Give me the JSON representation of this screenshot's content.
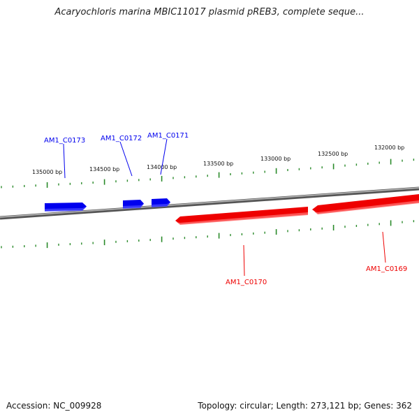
{
  "title": "Acaryochloris marina MBIC11017 plasmid pREB3, complete seque...",
  "footer": {
    "accession": "Accession: NC_009928",
    "summary": "Topology: circular; Length: 273,121 bp; Genes: 362"
  },
  "colors": {
    "forward_gene": "#0000ee",
    "reverse_gene": "#ee0000",
    "ticks": "#2a8a2a",
    "backbone": "#888888"
  },
  "ticks": [
    {
      "label": "135000 bp"
    },
    {
      "label": "134500 bp"
    },
    {
      "label": "134000 bp"
    },
    {
      "label": "133500 bp"
    },
    {
      "label": "133000 bp"
    },
    {
      "label": "132500 bp"
    },
    {
      "label": "132000 bp"
    }
  ],
  "genes": [
    {
      "name": "AM1_C0173",
      "strand": "forward"
    },
    {
      "name": "AM1_C0172",
      "strand": "forward"
    },
    {
      "name": "AM1_C0171",
      "strand": "forward"
    },
    {
      "name": "AM1_C0170",
      "strand": "reverse"
    },
    {
      "name": "AM1_C0169",
      "strand": "reverse"
    }
  ]
}
